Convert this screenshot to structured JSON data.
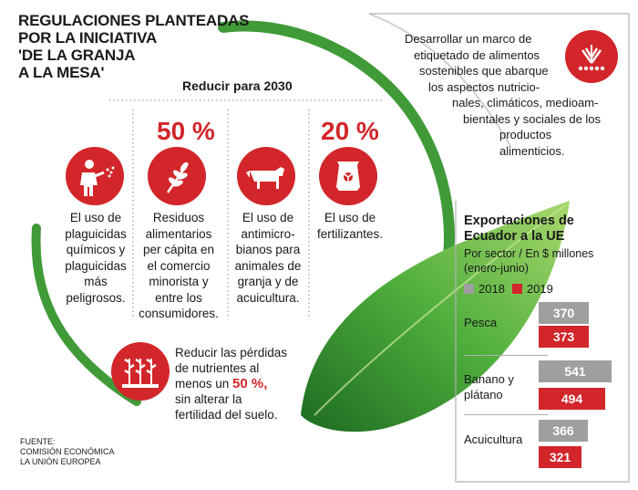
{
  "title": [
    "REGULACIONES PLANTEADAS",
    "POR LA INICIATIVA",
    "'DE LA GRANJA",
    "A LA MESA'"
  ],
  "goal_heading": "Reducir para 2030",
  "percent_a": "50 %",
  "percent_b": "20 %",
  "items": [
    {
      "lines": [
        "El uso de",
        "plaguicidas",
        "químicos y",
        "plaguicidas",
        "más",
        "peligrosos."
      ],
      "icon": "sprayer-person-icon"
    },
    {
      "lines": [
        "Residuos",
        "alimentarios",
        "per cápita en",
        "el comercio",
        "minorista y",
        "entre los",
        "consumidores."
      ],
      "icon": "wheat-icon"
    },
    {
      "lines": [
        "El uso de",
        "antimicro-",
        "bianos para",
        "animales de",
        "granja y de",
        "acuicultura."
      ],
      "icon": "cow-icon"
    },
    {
      "lines": [
        "El uso de",
        "fertilizantes."
      ],
      "icon": "fertilizer-bag-icon"
    }
  ],
  "nutrients": {
    "pre": [
      "Reducir las pérdidas",
      "de nutrientes al"
    ],
    "line3_prefix": "menos un ",
    "line3_highlight": "50 %,",
    "post": [
      "sin alterar la",
      "fertilidad del suelo."
    ],
    "icon": "crops-icon"
  },
  "labeling": {
    "lines": [
      "Desarrollar un marco de",
      "etiquetado de alimentos",
      "sostenibles que abarque",
      "los aspectos nutricio-",
      "nales, climáticos, medioam-",
      "bientales y sociales de los",
      "productos alimenticios."
    ],
    "icon": "wheat-logo-icon"
  },
  "source": [
    "FUENTE:",
    "COMISIÓN ECONÓMICA",
    "LA UNIÓN EUROPEA"
  ],
  "colors": {
    "red": "#d2262a",
    "green": "#3f9a37",
    "gray": "#9f9f9f"
  },
  "chart_data": {
    "type": "bar",
    "title": "Exportaciones de Ecuador a la UE",
    "subtitle": "Por sector / En $ millones (enero-junio)",
    "categories": [
      "Pesca",
      "Banano y plátano",
      "Acuicultura"
    ],
    "series": [
      {
        "name": "2018",
        "values": [
          370,
          541,
          366
        ]
      },
      {
        "name": "2019",
        "values": [
          373,
          494,
          321
        ]
      }
    ],
    "category_lines": [
      [
        "Pesca"
      ],
      [
        "Banano y",
        "plátano"
      ],
      [
        "Acuicultura"
      ]
    ],
    "subtitle_lines": [
      "Por sector / En $ millones",
      "(enero-junio)"
    ],
    "title_lines": [
      "Exportaciones de",
      "Ecuador a la UE"
    ],
    "legend_position": "top-left"
  }
}
